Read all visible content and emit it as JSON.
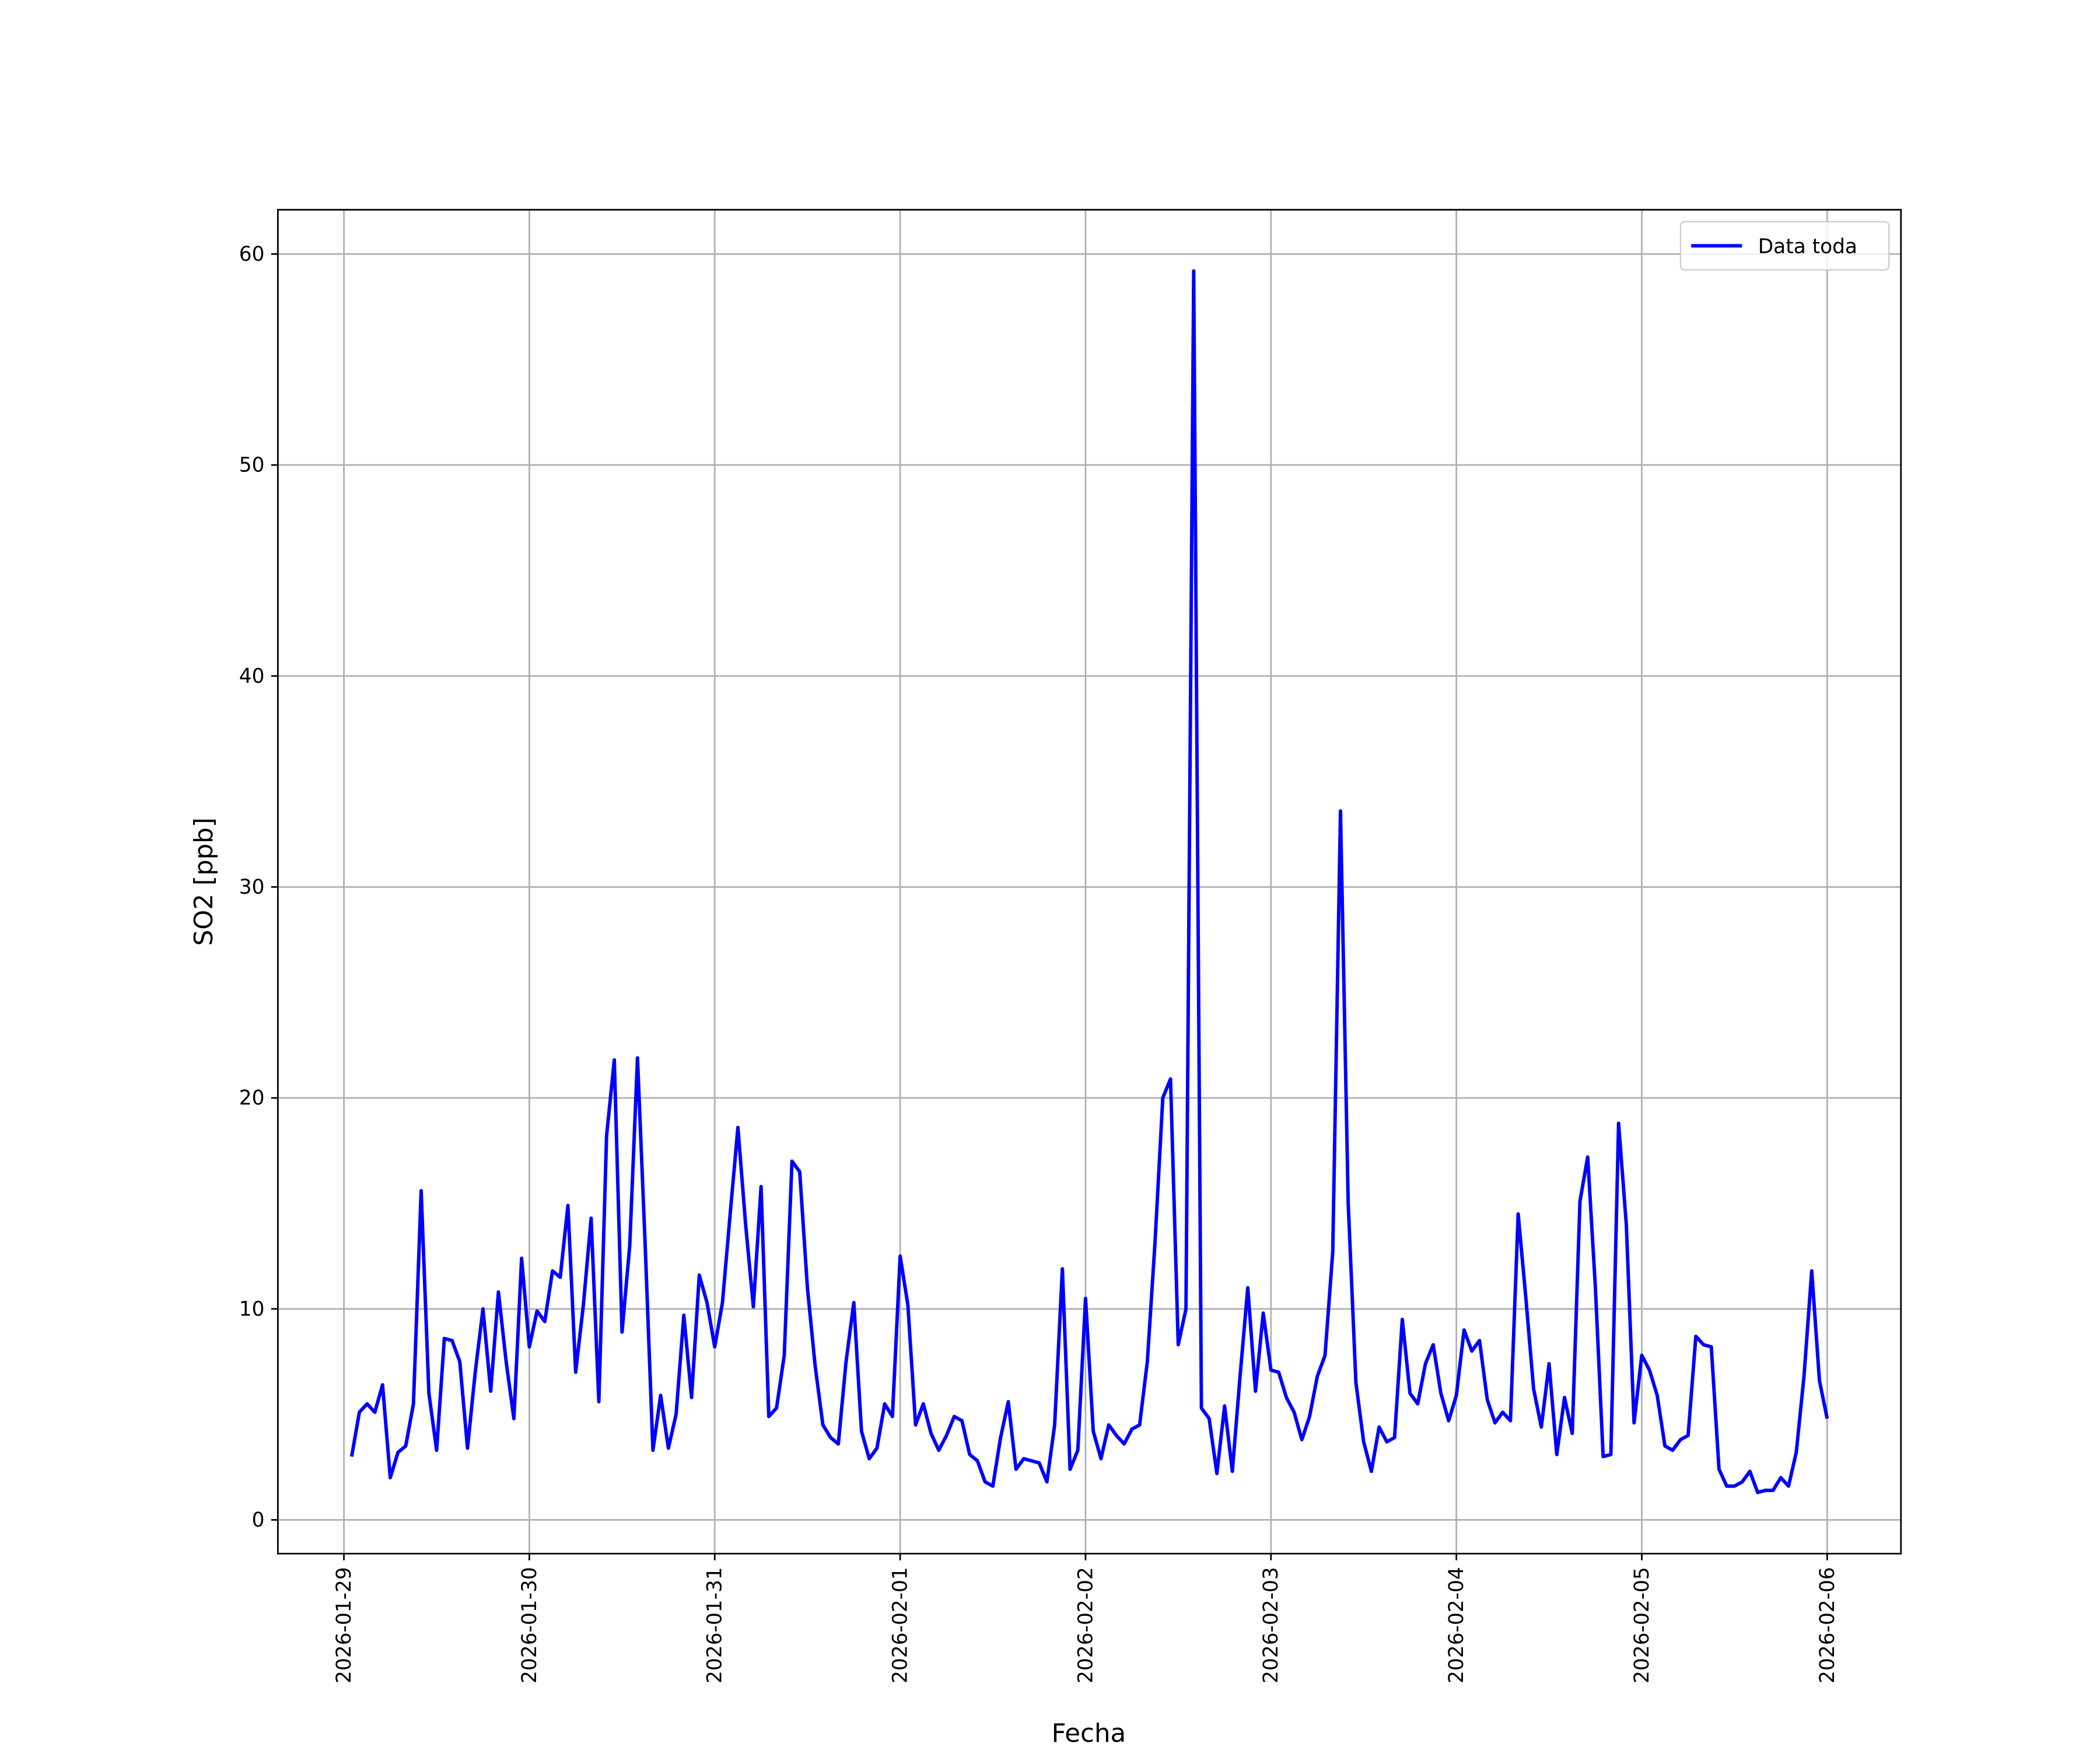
{
  "chart_data": {
    "type": "line",
    "xlabel": "Fecha",
    "ylabel": "SO2 [ppb]",
    "x": [
      "2026-01-29 01:00",
      "2026-01-29 02:00",
      "2026-01-29 03:00",
      "2026-01-29 04:00",
      "2026-01-29 05:00",
      "2026-01-29 06:00",
      "2026-01-29 07:00",
      "2026-01-29 08:00",
      "2026-01-29 09:00",
      "2026-01-29 10:00",
      "2026-01-29 11:00",
      "2026-01-29 12:00",
      "2026-01-29 13:00",
      "2026-01-29 14:00",
      "2026-01-29 15:00",
      "2026-01-29 16:00",
      "2026-01-29 17:00",
      "2026-01-29 18:00",
      "2026-01-29 19:00",
      "2026-01-29 20:00",
      "2026-01-29 21:00",
      "2026-01-29 22:00",
      "2026-01-29 23:00",
      "2026-01-30 00:00",
      "2026-01-30 01:00",
      "2026-01-30 02:00",
      "2026-01-30 03:00",
      "2026-01-30 04:00",
      "2026-01-30 05:00",
      "2026-01-30 06:00",
      "2026-01-30 07:00",
      "2026-01-30 08:00",
      "2026-01-30 09:00",
      "2026-01-30 10:00",
      "2026-01-30 11:00",
      "2026-01-30 12:00",
      "2026-01-30 13:00",
      "2026-01-30 14:00",
      "2026-01-30 15:00",
      "2026-01-30 16:00",
      "2026-01-30 17:00",
      "2026-01-30 18:00",
      "2026-01-30 19:00",
      "2026-01-30 20:00",
      "2026-01-30 21:00",
      "2026-01-30 22:00",
      "2026-01-30 23:00",
      "2026-01-31 00:00",
      "2026-01-31 01:00",
      "2026-01-31 02:00",
      "2026-01-31 03:00",
      "2026-01-31 04:00",
      "2026-01-31 05:00",
      "2026-01-31 06:00",
      "2026-01-31 07:00",
      "2026-01-31 08:00",
      "2026-01-31 09:00",
      "2026-01-31 10:00",
      "2026-01-31 11:00",
      "2026-01-31 12:00",
      "2026-01-31 13:00",
      "2026-01-31 14:00",
      "2026-01-31 15:00",
      "2026-01-31 16:00",
      "2026-01-31 17:00",
      "2026-01-31 18:00",
      "2026-01-31 19:00",
      "2026-01-31 20:00",
      "2026-01-31 21:00",
      "2026-01-31 22:00",
      "2026-01-31 23:00",
      "2026-02-01 00:00",
      "2026-02-01 01:00",
      "2026-02-01 02:00",
      "2026-02-01 03:00",
      "2026-02-01 04:00",
      "2026-02-01 05:00",
      "2026-02-01 06:00",
      "2026-02-01 07:00",
      "2026-02-01 08:00",
      "2026-02-01 09:00",
      "2026-02-01 10:00",
      "2026-02-01 11:00",
      "2026-02-01 12:00",
      "2026-02-01 13:00",
      "2026-02-01 14:00",
      "2026-02-01 15:00",
      "2026-02-01 16:00",
      "2026-02-01 17:00",
      "2026-02-01 18:00",
      "2026-02-01 19:00",
      "2026-02-01 20:00",
      "2026-02-01 21:00",
      "2026-02-01 22:00",
      "2026-02-01 23:00",
      "2026-02-02 00:00",
      "2026-02-02 01:00",
      "2026-02-02 02:00",
      "2026-02-02 03:00",
      "2026-02-02 04:00",
      "2026-02-02 05:00",
      "2026-02-02 06:00",
      "2026-02-02 07:00",
      "2026-02-02 08:00",
      "2026-02-02 09:00",
      "2026-02-02 10:00",
      "2026-02-02 11:00",
      "2026-02-02 12:00",
      "2026-02-02 13:00",
      "2026-02-02 14:00",
      "2026-02-02 15:00",
      "2026-02-02 16:00",
      "2026-02-02 17:00",
      "2026-02-02 18:00",
      "2026-02-02 19:00",
      "2026-02-02 20:00",
      "2026-02-02 21:00",
      "2026-02-02 22:00",
      "2026-02-02 23:00",
      "2026-02-03 00:00",
      "2026-02-03 01:00",
      "2026-02-03 02:00",
      "2026-02-03 03:00",
      "2026-02-03 04:00",
      "2026-02-03 05:00",
      "2026-02-03 06:00",
      "2026-02-03 07:00",
      "2026-02-03 08:00",
      "2026-02-03 09:00",
      "2026-02-03 10:00",
      "2026-02-03 11:00",
      "2026-02-03 12:00",
      "2026-02-03 13:00",
      "2026-02-03 14:00",
      "2026-02-03 15:00",
      "2026-02-03 16:00",
      "2026-02-03 17:00",
      "2026-02-03 18:00",
      "2026-02-03 19:00",
      "2026-02-03 20:00",
      "2026-02-03 21:00",
      "2026-02-03 22:00",
      "2026-02-03 23:00",
      "2026-02-04 00:00",
      "2026-02-04 01:00",
      "2026-02-04 02:00",
      "2026-02-04 03:00",
      "2026-02-04 04:00",
      "2026-02-04 05:00",
      "2026-02-04 06:00",
      "2026-02-04 07:00",
      "2026-02-04 08:00",
      "2026-02-04 09:00",
      "2026-02-04 10:00",
      "2026-02-04 11:00",
      "2026-02-04 12:00",
      "2026-02-04 13:00",
      "2026-02-04 14:00",
      "2026-02-04 15:00",
      "2026-02-04 16:00",
      "2026-02-04 17:00",
      "2026-02-04 18:00",
      "2026-02-04 19:00",
      "2026-02-04 20:00",
      "2026-02-04 21:00",
      "2026-02-04 22:00",
      "2026-02-04 23:00",
      "2026-02-05 00:00",
      "2026-02-05 01:00",
      "2026-02-05 02:00",
      "2026-02-05 03:00",
      "2026-02-05 04:00",
      "2026-02-05 05:00",
      "2026-02-05 06:00",
      "2026-02-05 07:00",
      "2026-02-05 08:00",
      "2026-02-05 09:00",
      "2026-02-05 10:00",
      "2026-02-05 11:00",
      "2026-02-05 12:00",
      "2026-02-05 13:00",
      "2026-02-05 14:00",
      "2026-02-05 15:00",
      "2026-02-05 16:00",
      "2026-02-05 17:00",
      "2026-02-05 18:00",
      "2026-02-05 19:00",
      "2026-02-05 20:00",
      "2026-02-05 21:00",
      "2026-02-05 22:00",
      "2026-02-05 23:00",
      "2026-02-06 00:00"
    ],
    "series": [
      {
        "name": "Data toda",
        "color": "#0000ff",
        "values": [
          3.0,
          5.1,
          5.5,
          5.1,
          6.4,
          2.0,
          3.2,
          3.5,
          5.5,
          15.6,
          6.0,
          3.3,
          8.6,
          8.5,
          7.5,
          3.4,
          7.0,
          10.0,
          6.1,
          10.8,
          7.5,
          4.8,
          12.4,
          8.2,
          9.9,
          9.4,
          11.8,
          11.5,
          14.9,
          7.0,
          10.2,
          14.3,
          5.6,
          18.2,
          21.8,
          8.9,
          13.0,
          21.9,
          13.0,
          3.3,
          5.9,
          3.4,
          5.0,
          9.7,
          5.8,
          11.6,
          10.3,
          8.2,
          10.3,
          14.5,
          18.6,
          14.0,
          10.1,
          15.8,
          4.9,
          5.3,
          7.8,
          17.0,
          16.5,
          11.0,
          7.3,
          4.5,
          3.9,
          3.6,
          7.5,
          10.3,
          4.2,
          2.9,
          3.4,
          5.5,
          4.9,
          12.5,
          10.2,
          4.5,
          5.5,
          4.1,
          3.3,
          4.0,
          4.9,
          4.7,
          3.1,
          2.8,
          1.8,
          1.6,
          3.9,
          5.6,
          2.4,
          2.9,
          2.8,
          2.7,
          1.8,
          4.5,
          11.9,
          2.4,
          3.3,
          10.5,
          4.2,
          2.9,
          4.5,
          4.0,
          3.6,
          4.3,
          4.5,
          7.5,
          13.2,
          20.0,
          20.9,
          8.3,
          10.0,
          59.2,
          5.3,
          4.8,
          2.2,
          5.4,
          2.3,
          6.8,
          11.0,
          6.1,
          9.8,
          7.1,
          7.0,
          5.8,
          5.1,
          3.8,
          4.9,
          6.8,
          7.8,
          12.7,
          33.6,
          15.0,
          6.5,
          3.7,
          2.3,
          4.4,
          3.7,
          3.9,
          9.5,
          6.0,
          5.5,
          7.4,
          8.3,
          6.0,
          4.7,
          5.9,
          9.0,
          8.0,
          8.5,
          5.7,
          4.6,
          5.1,
          4.7,
          14.5,
          10.5,
          6.2,
          4.4,
          7.4,
          3.1,
          5.8,
          4.1,
          15.1,
          17.2,
          11.0,
          3.0,
          3.1,
          18.8,
          14.0,
          4.6,
          7.8,
          7.1,
          5.9,
          3.5,
          3.3,
          3.8,
          4.0,
          8.7,
          8.3,
          8.2,
          2.4,
          1.6,
          1.6,
          1.8,
          2.3,
          1.3,
          1.4,
          1.4,
          2.0,
          1.6,
          3.2,
          6.8,
          11.8,
          6.6,
          4.8
        ]
      }
    ],
    "xlim": [
      "2026-01-28 15:27",
      "2026-02-06 09:33"
    ],
    "xticks": [
      "2026-01-29",
      "2026-01-30",
      "2026-01-31",
      "2026-02-01",
      "2026-02-02",
      "2026-02-03",
      "2026-02-04",
      "2026-02-05",
      "2026-02-06"
    ],
    "ylim": [
      -1.6,
      62.1
    ],
    "yticks": [
      0,
      10,
      20,
      30,
      40,
      50,
      60
    ],
    "grid": true,
    "legend": "upper right"
  }
}
